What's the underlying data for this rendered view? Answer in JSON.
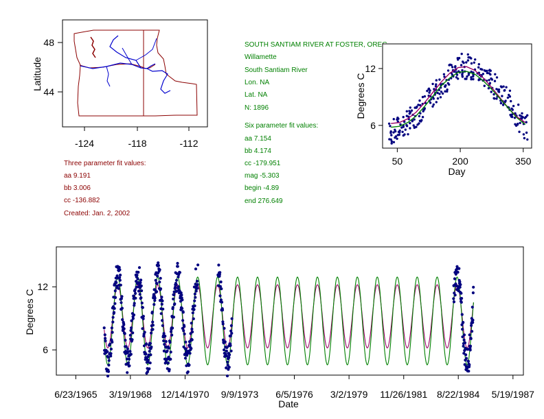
{
  "colors": {
    "red": "#8b0000",
    "green": "#008000",
    "blue": "#0000cd",
    "navy": "#00007f",
    "magenta": "#990066",
    "state_lines": "#8b0000",
    "rivers": "#0000cd"
  },
  "map": {
    "ylabel": "Latitude",
    "y_ticks": [
      "48",
      "44"
    ],
    "x_ticks": [
      "-124",
      "-118",
      "-112"
    ]
  },
  "station": {
    "name": "SOUTH SANTIAM RIVER AT FOSTER, OREG.",
    "basin": "Willamette",
    "river": "South Santiam River",
    "lon": "Lon. NA",
    "lat": "Lat. NA",
    "n": "N: 1896"
  },
  "three_param": {
    "title": "Three parameter fit values:",
    "aa": "aa 9.191",
    "bb": "bb 3.006",
    "cc": "cc -136.882",
    "created": "Created:   Jan. 2, 2002"
  },
  "six_param": {
    "title": "Six parameter fit values:",
    "aa": "aa 7.154",
    "bb": "bb 4.174",
    "cc": "cc -179.951",
    "mag": "mag -5.303",
    "begin": "begin -4.89",
    "end": "end 276.649"
  },
  "chart_data": [
    {
      "id": "day-of-year",
      "type": "scatter",
      "title": "",
      "xlabel": "Day",
      "ylabel": "Degrees C",
      "xlim": [
        15,
        370
      ],
      "ylim": [
        3.6,
        14.6
      ],
      "x_ticks": [
        50,
        200,
        350
      ],
      "y_ticks": [
        6,
        12
      ],
      "x_tick_labels": [
        "50",
        "200",
        "350"
      ],
      "y_tick_labels": [
        "6",
        "12"
      ],
      "series": [
        {
          "name": "observed",
          "style": "points",
          "color": "#00007f",
          "x": [
            35,
            45,
            55,
            65,
            75,
            85,
            95,
            105,
            115,
            125,
            135,
            145,
            155,
            165,
            175,
            185,
            195,
            205,
            215,
            225,
            235,
            245,
            255,
            265,
            275,
            285,
            295,
            305,
            315,
            325,
            335,
            345,
            355
          ],
          "y": [
            5.2,
            5.4,
            5.7,
            6.0,
            6.3,
            6.6,
            7.0,
            7.5,
            8.0,
            8.6,
            9.1,
            9.7,
            10.2,
            10.8,
            11.2,
            11.6,
            12.0,
            12.3,
            12.2,
            12.0,
            11.8,
            11.5,
            11.3,
            11.0,
            10.6,
            10.1,
            9.6,
            9.0,
            8.4,
            7.8,
            7.0,
            6.3,
            5.8
          ]
        },
        {
          "name": "three parameter fit",
          "style": "line",
          "color": "#990066",
          "x": [
            35,
            55,
            75,
            95,
            115,
            135,
            155,
            175,
            195,
            215,
            235,
            255,
            275,
            295,
            315,
            335,
            355
          ],
          "y": [
            6.2,
            6.3,
            6.7,
            7.4,
            8.4,
            9.5,
            10.6,
            11.5,
            12.1,
            12.2,
            11.8,
            11.0,
            10.0,
            8.9,
            7.8,
            6.9,
            6.3
          ]
        },
        {
          "name": "six parameter fit",
          "style": "line",
          "color": "#008000",
          "x": [
            35,
            55,
            75,
            95,
            115,
            135,
            155,
            175,
            195,
            215,
            235,
            255,
            275,
            295,
            315,
            335,
            355
          ],
          "y": [
            5.8,
            5.9,
            6.3,
            7.0,
            8.0,
            9.1,
            10.2,
            11.0,
            11.6,
            11.7,
            11.4,
            10.7,
            9.8,
            8.8,
            7.8,
            6.8,
            6.1
          ]
        }
      ]
    },
    {
      "id": "time-series",
      "type": "line",
      "title": "",
      "xlabel": "Date",
      "ylabel": "Degrees C",
      "xlim": [
        1964.5,
        1987.9
      ],
      "ylim": [
        3.6,
        15.8
      ],
      "x_ticks": [
        1965.476,
        1968.211,
        1970.951,
        1973.688,
        1976.425,
        1979.164,
        1981.904,
        1984.638,
        1987.378
      ],
      "x_tick_labels": [
        "6/23/1965",
        "3/19/1968",
        "12/14/1970",
        "9/9/1973",
        "6/5/1976",
        "3/2/1979",
        "11/26/1981",
        "8/22/1984",
        "5/19/1987"
      ],
      "y_ticks": [
        6,
        12
      ],
      "y_tick_labels": [
        "6",
        "12"
      ],
      "fit_range": [
        1966.9,
        1985.4
      ],
      "three_param_fit": {
        "mean": 9.191,
        "amplitude": 3.006,
        "color": "#990066"
      },
      "six_param_fit": {
        "mean": 7.154,
        "amplitude": 4.174,
        "color": "#008000"
      },
      "observed_segments": [
        {
          "start": 1966.9,
          "end": 1971.6
        },
        {
          "start": 1972.6,
          "end": 1973.3
        },
        {
          "start": 1984.4,
          "end": 1985.4
        }
      ],
      "series": [
        {
          "name": "observed",
          "style": "points",
          "color": "#00007f",
          "x": [
            1967.0,
            1967.2,
            1967.4,
            1967.6,
            1967.8,
            1968.0,
            1968.2,
            1968.4,
            1968.6,
            1968.8,
            1969.0,
            1969.2,
            1969.4,
            1969.6,
            1969.8,
            1970.0,
            1970.2,
            1970.4,
            1970.6,
            1970.8,
            1971.0,
            1971.2,
            1971.4,
            1972.7,
            1972.9,
            1973.1,
            1984.5,
            1984.7,
            1984.9,
            1985.1,
            1985.3
          ],
          "y": [
            6.0,
            4.5,
            5.5,
            9.0,
            14.0,
            11.0,
            7.0,
            5.0,
            7.5,
            12.5,
            10.0,
            6.0,
            5.0,
            8.5,
            12.0,
            10.5,
            6.0,
            4.5,
            8.0,
            12.5,
            10.5,
            6.0,
            5.5,
            10.0,
            6.0,
            5.5,
            8.0,
            11.5,
            11.0,
            9.5,
            8.5
          ]
        }
      ]
    }
  ]
}
